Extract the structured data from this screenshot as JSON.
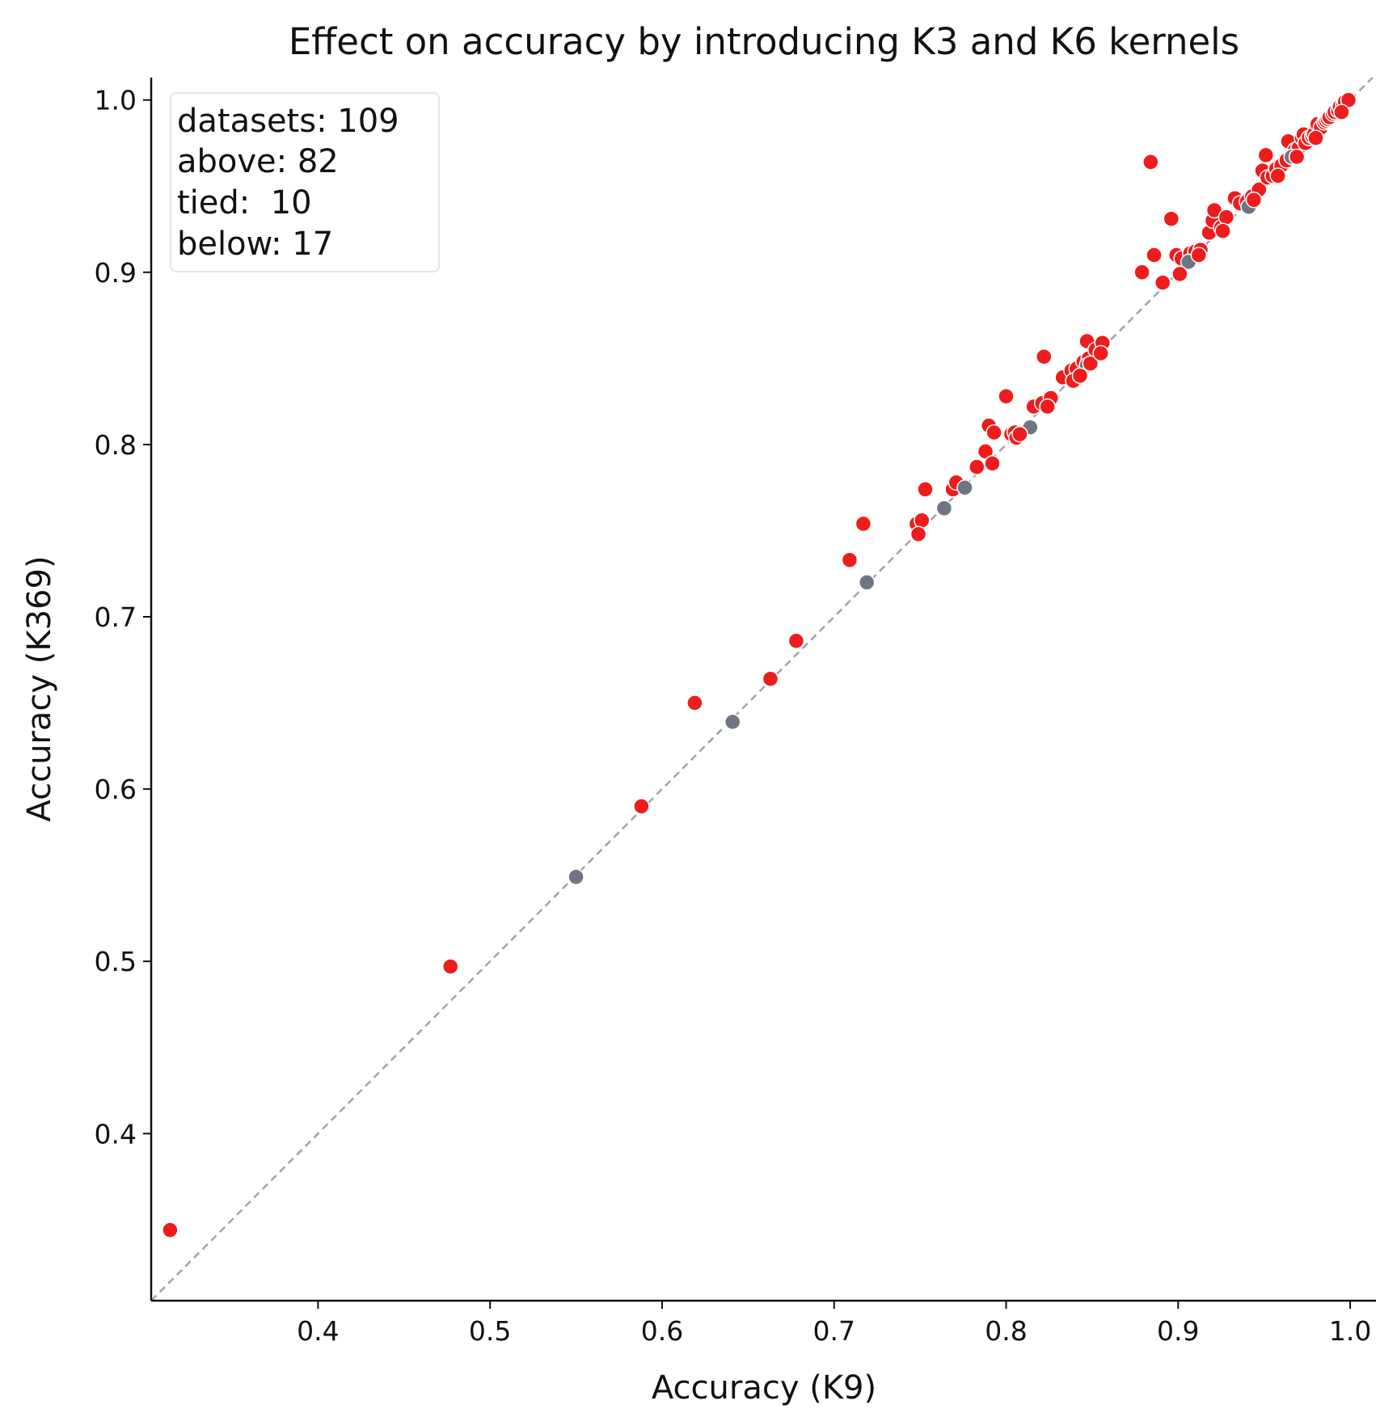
{
  "chart_data": {
    "type": "scatter",
    "title": "Effect on accuracy by introducing K3 and K6 kernels",
    "xlabel": "Accuracy (K9)",
    "ylabel": "Accuracy (K369)",
    "xlim": [
      0.303,
      1.015
    ],
    "ylim": [
      0.303,
      1.013
    ],
    "xticks": [
      "0.4",
      "0.5",
      "0.6",
      "0.7",
      "0.8",
      "0.9",
      "1.0"
    ],
    "yticks": [
      "0.4",
      "0.5",
      "0.6",
      "0.7",
      "0.8",
      "0.9",
      "1.0"
    ],
    "diagonal": true,
    "grid": false,
    "stats": {
      "datasets": "datasets: 109",
      "above": "above: 82",
      "tied": "tied:  10",
      "below": "below: 17",
      "placement": "top-left"
    },
    "colors": {
      "above": "#ee1c1c",
      "tied": "#6f7583",
      "below": "#ee1c1c",
      "diagonal": "#a0a3ad"
    },
    "series": [
      {
        "group": "above",
        "points": [
          [
            0.314,
            0.344
          ],
          [
            0.477,
            0.497
          ],
          [
            0.588,
            0.59
          ],
          [
            0.619,
            0.65
          ],
          [
            0.663,
            0.664
          ],
          [
            0.678,
            0.686
          ],
          [
            0.709,
            0.733
          ],
          [
            0.717,
            0.754
          ],
          [
            0.748,
            0.754
          ],
          [
            0.751,
            0.756
          ],
          [
            0.753,
            0.774
          ],
          [
            0.769,
            0.774
          ],
          [
            0.771,
            0.778
          ],
          [
            0.783,
            0.787
          ],
          [
            0.788,
            0.796
          ],
          [
            0.79,
            0.811
          ],
          [
            0.793,
            0.807
          ],
          [
            0.8,
            0.828
          ],
          [
            0.803,
            0.806
          ],
          [
            0.805,
            0.807
          ],
          [
            0.816,
            0.822
          ],
          [
            0.821,
            0.824
          ],
          [
            0.822,
            0.851
          ],
          [
            0.826,
            0.827
          ],
          [
            0.833,
            0.839
          ],
          [
            0.838,
            0.843
          ],
          [
            0.841,
            0.844
          ],
          [
            0.845,
            0.848
          ],
          [
            0.848,
            0.85
          ],
          [
            0.847,
            0.86
          ],
          [
            0.852,
            0.855
          ],
          [
            0.856,
            0.859
          ],
          [
            0.879,
            0.9
          ],
          [
            0.884,
            0.964
          ],
          [
            0.886,
            0.91
          ],
          [
            0.891,
            0.894
          ],
          [
            0.896,
            0.931
          ],
          [
            0.899,
            0.91
          ],
          [
            0.902,
            0.908
          ],
          [
            0.907,
            0.911
          ],
          [
            0.91,
            0.912
          ],
          [
            0.913,
            0.913
          ],
          [
            0.918,
            0.923
          ],
          [
            0.92,
            0.93
          ],
          [
            0.921,
            0.936
          ],
          [
            0.925,
            0.926
          ],
          [
            0.928,
            0.932
          ],
          [
            0.933,
            0.943
          ],
          [
            0.936,
            0.94
          ],
          [
            0.94,
            0.941
          ],
          [
            0.943,
            0.944
          ],
          [
            0.947,
            0.948
          ],
          [
            0.949,
            0.959
          ],
          [
            0.951,
            0.968
          ],
          [
            0.952,
            0.955
          ],
          [
            0.955,
            0.956
          ],
          [
            0.957,
            0.96
          ],
          [
            0.96,
            0.962
          ],
          [
            0.963,
            0.965
          ],
          [
            0.964,
            0.976
          ],
          [
            0.966,
            0.967
          ],
          [
            0.968,
            0.971
          ],
          [
            0.97,
            0.972
          ],
          [
            0.972,
            0.978
          ],
          [
            0.973,
            0.98
          ],
          [
            0.974,
            0.975
          ],
          [
            0.976,
            0.978
          ],
          [
            0.978,
            0.979
          ],
          [
            0.979,
            0.98
          ],
          [
            0.981,
            0.986
          ],
          [
            0.983,
            0.984
          ],
          [
            0.985,
            0.987
          ],
          [
            0.986,
            0.988
          ],
          [
            0.987,
            0.989
          ],
          [
            0.988,
            0.99
          ],
          [
            0.99,
            0.992
          ],
          [
            0.991,
            0.993
          ],
          [
            0.993,
            0.994
          ],
          [
            0.994,
            0.996
          ],
          [
            0.996,
            0.997
          ],
          [
            0.997,
            0.999
          ],
          [
            0.999,
            1.0
          ]
        ]
      },
      {
        "group": "tied",
        "points": [
          [
            0.55,
            0.549
          ],
          [
            0.641,
            0.639
          ],
          [
            0.719,
            0.72
          ],
          [
            0.764,
            0.763
          ],
          [
            0.776,
            0.775
          ],
          [
            0.814,
            0.81
          ],
          [
            0.847,
            0.846
          ],
          [
            0.906,
            0.906
          ],
          [
            0.941,
            0.938
          ],
          [
            0.966,
            0.967
          ]
        ]
      },
      {
        "group": "below",
        "points": [
          [
            0.749,
            0.748
          ],
          [
            0.792,
            0.789
          ],
          [
            0.806,
            0.804
          ],
          [
            0.808,
            0.806
          ],
          [
            0.824,
            0.822
          ],
          [
            0.839,
            0.837
          ],
          [
            0.843,
            0.84
          ],
          [
            0.849,
            0.847
          ],
          [
            0.855,
            0.853
          ],
          [
            0.901,
            0.899
          ],
          [
            0.912,
            0.91
          ],
          [
            0.926,
            0.924
          ],
          [
            0.944,
            0.942
          ],
          [
            0.958,
            0.956
          ],
          [
            0.969,
            0.967
          ],
          [
            0.98,
            0.978
          ],
          [
            0.995,
            0.993
          ]
        ]
      }
    ]
  }
}
